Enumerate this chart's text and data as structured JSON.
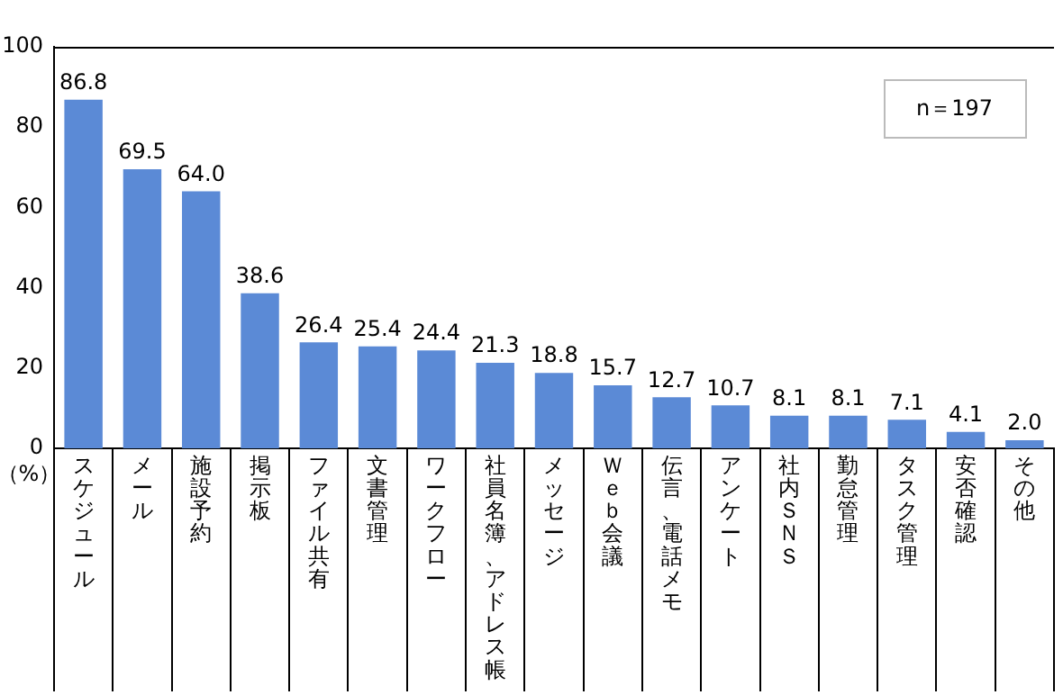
{
  "chart_data": {
    "type": "bar",
    "ylabel": "（%）",
    "categories": [
      "スケジュール",
      "メール",
      "施設予約",
      "掲示板",
      "ファイル共有",
      "文書管理",
      "ワークフロー",
      "社員名簿、アドレス帳",
      "メッセージ",
      "Ｗｅｂ会議",
      "伝言、電話メモ",
      "アンケート",
      "社内ＳＮＳ",
      "勤怠管理",
      "タスク管理",
      "安否確認",
      "その他"
    ],
    "values": [
      86.8,
      69.5,
      64.0,
      38.6,
      26.4,
      25.4,
      24.4,
      21.3,
      18.8,
      15.7,
      12.7,
      10.7,
      8.1,
      8.1,
      7.1,
      4.1,
      2.0
    ],
    "value_labels": [
      "86.8",
      "69.5",
      "64.0",
      "38.6",
      "26.4",
      "25.4",
      "24.4",
      "21.3",
      "18.8",
      "15.7",
      "12.7",
      "10.7",
      "8.1",
      "8.1",
      "7.1",
      "4.1",
      "2.0"
    ],
    "color": "#5b8ad6",
    "ylim": [
      0,
      100
    ],
    "yticks": [
      0,
      20,
      40,
      60,
      80,
      100
    ],
    "grid": false,
    "legend": false,
    "annotations": [
      "n＝197"
    ]
  }
}
